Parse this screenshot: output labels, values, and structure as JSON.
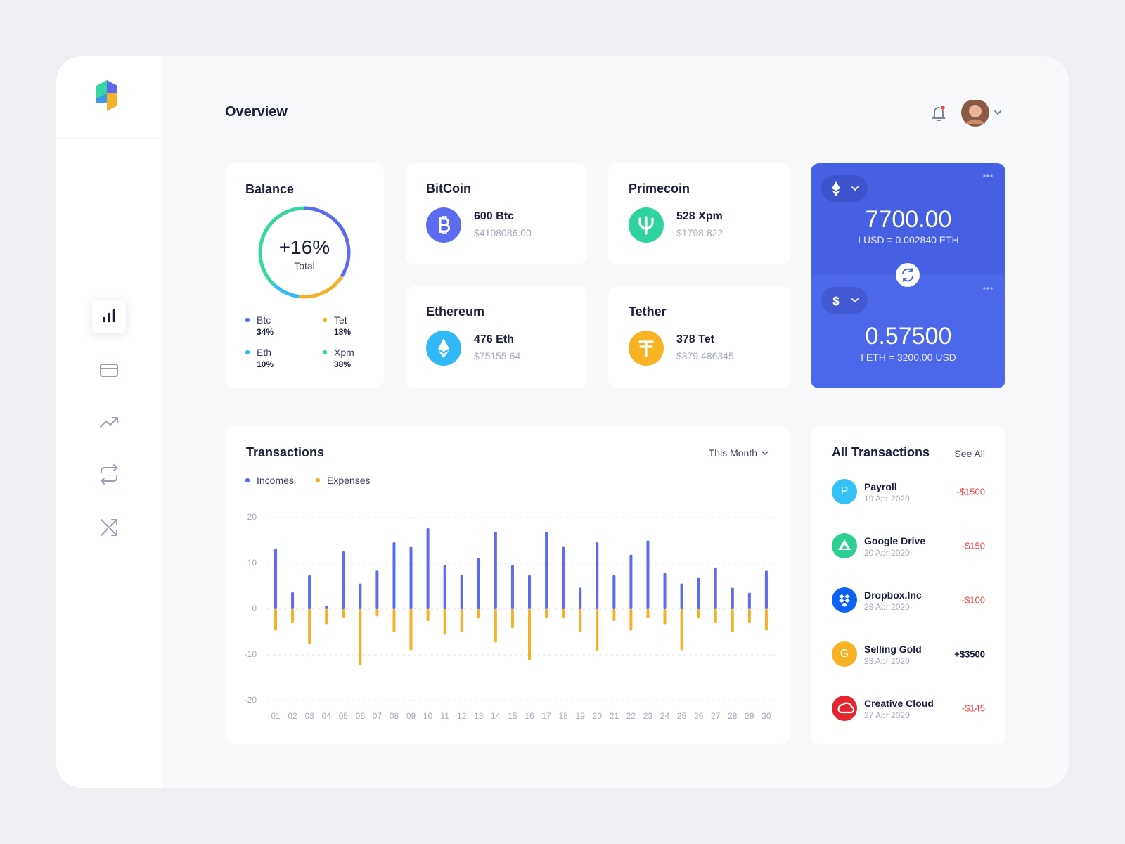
{
  "header": {
    "title": "Overview"
  },
  "balance": {
    "title": "Balance",
    "center_value": "+16%",
    "center_label": "Total",
    "items": [
      {
        "name": "Btc",
        "value": 34,
        "label": "34%",
        "color": "#5b6cf0"
      },
      {
        "name": "Tet",
        "value": 18,
        "label": "18%",
        "color": "#f6b12b"
      },
      {
        "name": "Eth",
        "value": 10,
        "label": "10%",
        "color": "#31b8f6"
      },
      {
        "name": "Xpm",
        "value": 38,
        "label": "38%",
        "color": "#35d6a2"
      }
    ]
  },
  "coins": [
    {
      "name": "BitCoin",
      "amount": "600 Btc",
      "value": "$4108086.00",
      "color": "#5b6cf0"
    },
    {
      "name": "Primecoin",
      "amount": "528 Xpm",
      "value": "$1798.822",
      "color": "#2fd39f"
    },
    {
      "name": "Ethereum",
      "amount": "476 Eth",
      "value": "$75155.64",
      "color": "#31b8f6"
    },
    {
      "name": "Tether",
      "amount": "378 Tet",
      "value": "$379.486345",
      "color": "#f8b324"
    }
  ],
  "converter": {
    "top": {
      "amount": "7700.00",
      "rate": "I USD = 0.002840 ETH"
    },
    "bottom": {
      "symbol": "$",
      "amount": "0.57500",
      "rate": "I ETH = 3200.00 USD"
    }
  },
  "transactions_chart": {
    "type": "bar",
    "title": "Transactions",
    "period": "This Month",
    "categories": [
      "01",
      "02",
      "03",
      "04",
      "05",
      "06",
      "07",
      "08",
      "09",
      "10",
      "11",
      "12",
      "13",
      "14",
      "15",
      "16",
      "17",
      "18",
      "19",
      "20",
      "21",
      "22",
      "23",
      "24",
      "25",
      "26",
      "27",
      "28",
      "29",
      "30"
    ],
    "series": [
      {
        "name": "Incomes",
        "color": "#5b6cf0",
        "values": [
          13.2,
          3.7,
          7.4,
          0.8,
          12.6,
          5.6,
          8.4,
          14.6,
          13.6,
          17.7,
          9.6,
          7.4,
          11.2,
          16.9,
          9.6,
          7.4,
          16.9,
          13.6,
          4.7,
          14.6,
          7.4,
          11.9,
          15,
          8,
          5.6,
          6.8,
          9.1,
          4.7,
          3.6,
          8.4
        ]
      },
      {
        "name": "Expenses",
        "color": "#f6b12b",
        "values": [
          -4.7,
          -3.1,
          -7.6,
          -3.3,
          -2,
          -12.3,
          -1.6,
          -5.1,
          -9,
          -2.6,
          -5.6,
          -5.1,
          -2,
          -7.3,
          -4.2,
          -11.2,
          -2,
          -2,
          -5.1,
          -9.2,
          -2.6,
          -4.7,
          -2,
          -3.3,
          -9,
          -2,
          -3.1,
          -5.1,
          -3.1,
          -4.7
        ]
      }
    ],
    "ylim": [
      -20,
      20
    ],
    "yticks": [
      -20,
      -10,
      0,
      10,
      20
    ],
    "grid": true
  },
  "all_transactions": {
    "title": "All Transactions",
    "link": "See All",
    "items": [
      {
        "icon_text": "P",
        "name": "Payroll",
        "date": "19 Apr 2020",
        "amount": "-$1500",
        "color": "#33c1f6"
      },
      {
        "name": "Google Drive",
        "date": "20 Apr 2020",
        "amount": "-$150",
        "color": "#2ecf92"
      },
      {
        "name": "Dropbox,Inc",
        "date": "23 Apr 2020",
        "amount": "-$100",
        "color": "#0d62f5"
      },
      {
        "icon_text": "G",
        "name": "Selling Gold",
        "date": "23 Apr 2020",
        "amount": "+$3500",
        "color": "#f8b324"
      },
      {
        "name": "Creative Cloud",
        "date": "27 Apr 2020",
        "amount": "-$145",
        "color": "#e3262f"
      }
    ]
  }
}
